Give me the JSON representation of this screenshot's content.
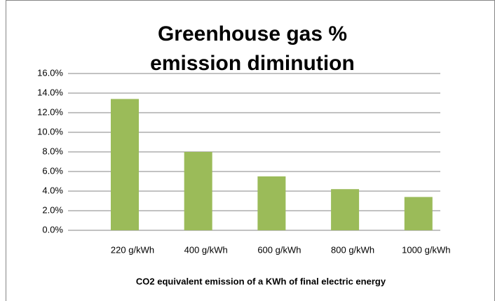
{
  "chart_data": {
    "type": "bar",
    "title": "Greenhouse gas % emission diminution",
    "x_label": "CO2 equivalent emission of a KWh of final electric energy",
    "categories": [
      "220 g/kWh",
      "400 g/kWh",
      "600 g/kWh",
      "800 g/kWh",
      "1000 g/kWh"
    ],
    "values": [
      13.4,
      8.0,
      5.5,
      4.2,
      3.4
    ],
    "color": "#9bbb59",
    "ylim": [
      0,
      16
    ],
    "yticks": [
      {
        "value": 0,
        "label": "0.0%"
      },
      {
        "value": 2,
        "label": "2.0%"
      },
      {
        "value": 4,
        "label": "4.0%"
      },
      {
        "value": 6,
        "label": "6.0%"
      },
      {
        "value": 8,
        "label": "8.0%"
      },
      {
        "value": 10,
        "label": "10.0%"
      },
      {
        "value": 12,
        "label": "12.0%"
      },
      {
        "value": 14,
        "label": "14.0%"
      },
      {
        "value": 16,
        "label": "16.0%"
      }
    ],
    "grid": true
  }
}
